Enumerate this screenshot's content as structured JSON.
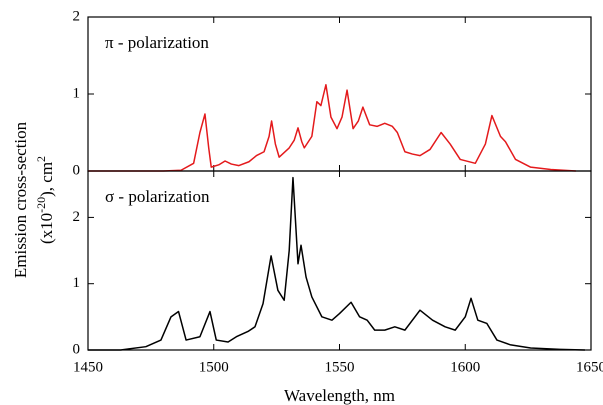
{
  "ylabel": {
    "line1": "Emission cross-section",
    "line2": [
      "(x10",
      "-20",
      "), cm",
      "2"
    ]
  },
  "chart_data": [
    {
      "type": "line",
      "annotation": "π - polarization",
      "xlim": [
        1450,
        1650
      ],
      "ylim": [
        0,
        2
      ],
      "yticks": [
        0,
        1,
        2
      ],
      "x": [
        1450,
        1480,
        1487,
        1492,
        1494.5,
        1496.5,
        1498,
        1499,
        1502,
        1504.5,
        1507,
        1510,
        1514,
        1517,
        1520,
        1522,
        1523,
        1524.5,
        1526,
        1530,
        1532,
        1533.5,
        1535,
        1536,
        1539,
        1541,
        1542.6,
        1544.6,
        1546.6,
        1549,
        1551,
        1553,
        1555.4,
        1557.5,
        1559.3,
        1562,
        1565,
        1568,
        1571,
        1573,
        1576,
        1579,
        1582,
        1586,
        1590.4,
        1594,
        1598,
        1604,
        1608,
        1610.6,
        1614,
        1616,
        1620,
        1626,
        1634,
        1644
      ],
      "series": [
        {
          "color": "#e41a1c",
          "values": [
            0,
            0,
            0.01,
            0.1,
            0.5,
            0.74,
            0.3,
            0.05,
            0.08,
            0.13,
            0.09,
            0.07,
            0.12,
            0.2,
            0.25,
            0.45,
            0.65,
            0.35,
            0.18,
            0.3,
            0.4,
            0.56,
            0.38,
            0.3,
            0.45,
            0.9,
            0.85,
            1.12,
            0.7,
            0.55,
            0.7,
            1.05,
            0.55,
            0.65,
            0.83,
            0.6,
            0.58,
            0.62,
            0.58,
            0.5,
            0.25,
            0.22,
            0.2,
            0.28,
            0.5,
            0.35,
            0.15,
            0.1,
            0.35,
            0.72,
            0.45,
            0.38,
            0.15,
            0.05,
            0.02,
            0
          ]
        }
      ]
    },
    {
      "type": "line",
      "annotation": "σ - polarization",
      "xlabel": "Wavelength, nm",
      "xlim": [
        1450,
        1650
      ],
      "xticks": [
        1450,
        1500,
        1550,
        1600,
        1650
      ],
      "ylim": [
        0,
        2.7
      ],
      "yticks": [
        0,
        1,
        2
      ],
      "x": [
        1450,
        1463,
        1473,
        1479,
        1483,
        1486,
        1489,
        1494.5,
        1498.5,
        1501,
        1505.7,
        1509,
        1513.6,
        1516.4,
        1519.6,
        1522.8,
        1525.5,
        1528,
        1530,
        1531.5,
        1533.5,
        1534.7,
        1536.7,
        1539,
        1543,
        1547,
        1550,
        1554.6,
        1558,
        1561,
        1564,
        1568,
        1572,
        1576,
        1582,
        1587,
        1592,
        1596,
        1600,
        1602.3,
        1605,
        1608.6,
        1612.6,
        1617.8,
        1626,
        1637.7,
        1647.6
      ],
      "series": [
        {
          "color": "#000000",
          "values": [
            0,
            0,
            0.05,
            0.15,
            0.5,
            0.58,
            0.15,
            0.2,
            0.58,
            0.15,
            0.12,
            0.2,
            0.28,
            0.35,
            0.7,
            1.42,
            0.9,
            0.75,
            1.5,
            2.6,
            1.3,
            1.58,
            1.1,
            0.8,
            0.5,
            0.45,
            0.55,
            0.72,
            0.5,
            0.45,
            0.3,
            0.3,
            0.35,
            0.3,
            0.6,
            0.45,
            0.35,
            0.3,
            0.5,
            0.78,
            0.45,
            0.4,
            0.15,
            0.08,
            0.03,
            0.01,
            0
          ]
        }
      ]
    }
  ]
}
